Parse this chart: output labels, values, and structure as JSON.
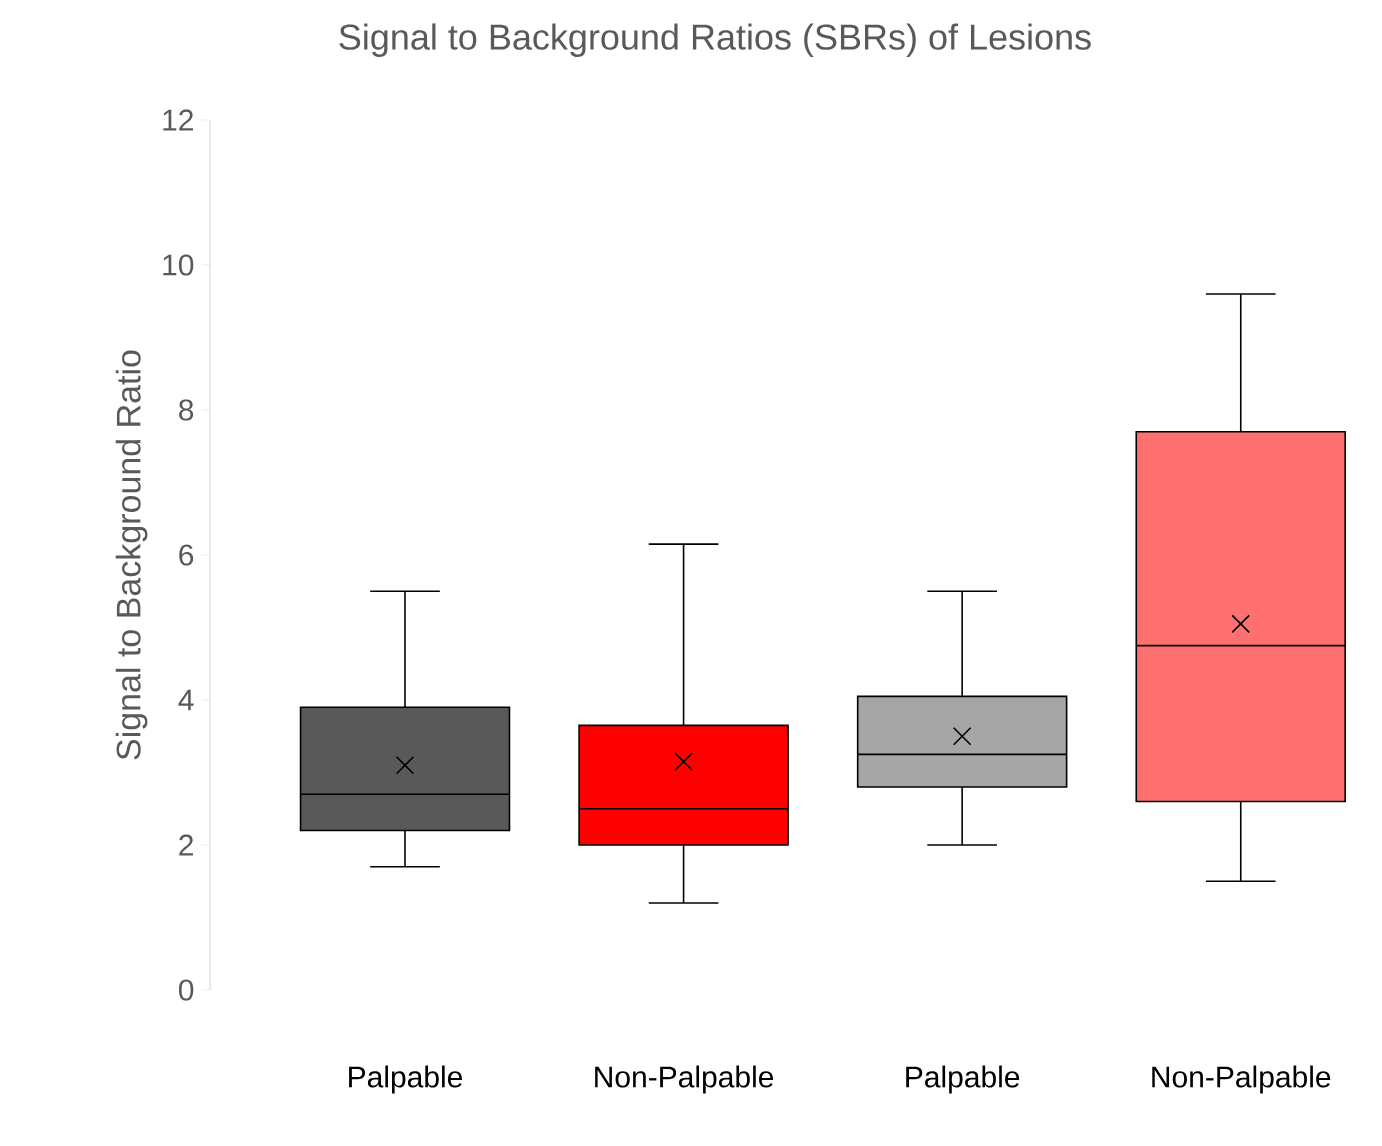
{
  "chart_data": {
    "type": "box",
    "title": "Signal to Background Ratios (SBRs) of Lesions",
    "ylabel": "Signal to Background Ratio",
    "categories": [
      "Palpable",
      "Non-Palpable",
      "Palpable",
      "Non-Palpable"
    ],
    "colors": [
      "#595959",
      "#ff0000",
      "#a6a6a6",
      "#ff7171"
    ],
    "boxes": [
      {
        "low": 1.7,
        "q1": 2.2,
        "median": 2.7,
        "q3": 3.9,
        "high": 5.5,
        "mean": 3.1
      },
      {
        "low": 1.2,
        "q1": 2.0,
        "median": 2.5,
        "q3": 3.65,
        "high": 6.15,
        "mean": 3.15
      },
      {
        "low": 2.0,
        "q1": 2.8,
        "median": 3.25,
        "q3": 4.05,
        "high": 5.5,
        "mean": 3.5
      },
      {
        "low": 1.5,
        "q1": 2.6,
        "median": 4.75,
        "q3": 7.7,
        "high": 9.6,
        "mean": 5.05
      }
    ],
    "ylim": [
      0,
      12
    ],
    "yticks": [
      0,
      2,
      4,
      6,
      8,
      10,
      12
    ]
  }
}
